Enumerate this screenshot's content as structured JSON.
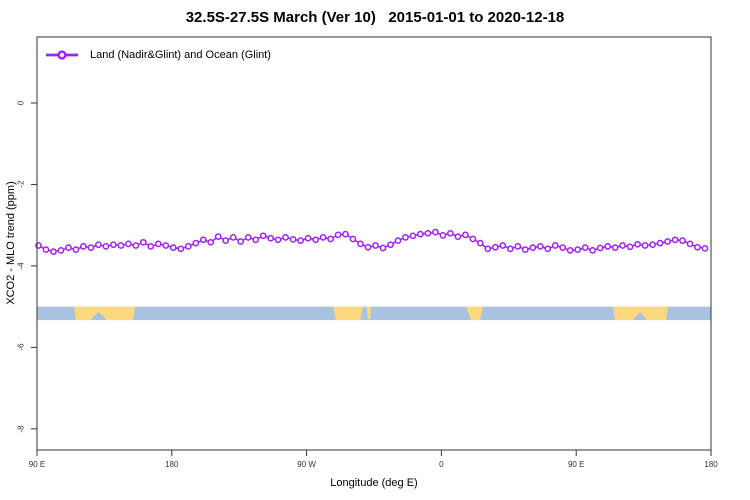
{
  "title": "32.5S-27.5S March (Ver 10)   2015-01-01 to 2020-12-18",
  "legend": {
    "label": "Land (Nadir&Glint) and Ocean (Glint)"
  },
  "colors": {
    "series": "#a020f0",
    "marker_fill": "#ffffff",
    "ocean_band": "#a8c2e0",
    "land_band": "#fcd87e",
    "axis": "#333333",
    "text": "#000000"
  },
  "chart_data": {
    "type": "line",
    "title": "32.5S-27.5S March (Ver 10)   2015-01-01 to 2020-12-18",
    "xlabel": "Longitude (deg E)",
    "ylabel": "XCO2 - MLO trend (ppm)",
    "xlim": [
      90,
      540
    ],
    "ylim": [
      -8.52,
      1.62
    ],
    "grid": false,
    "legend_position": "top-left",
    "x_ticks": [
      {
        "value": 90,
        "label": "90 E"
      },
      {
        "value": 180,
        "label": "180"
      },
      {
        "value": 270,
        "label": "90 W"
      },
      {
        "value": 360,
        "label": "0"
      },
      {
        "value": 450,
        "label": "90 E"
      },
      {
        "value": 540,
        "label": "180"
      }
    ],
    "y_ticks": [
      {
        "value": 0,
        "label": "0"
      },
      {
        "value": -2,
        "label": "-2"
      },
      {
        "value": -4,
        "label": "-4"
      },
      {
        "value": -6,
        "label": "-6"
      },
      {
        "value": -8,
        "label": "-8"
      }
    ],
    "series": [
      {
        "name": "Land (Nadir&Glint) and Ocean (Glint)",
        "color": "#a020f0",
        "marker": "open-circle",
        "x": [
          91,
          96,
          101,
          106,
          111,
          116,
          121,
          126,
          131,
          136,
          141,
          146,
          151,
          156,
          161,
          166,
          171,
          176,
          181,
          186,
          191,
          196,
          201,
          206,
          211,
          216,
          221,
          226,
          231,
          236,
          241,
          246,
          251,
          256,
          261,
          266,
          271,
          276,
          281,
          286,
          291,
          296,
          301,
          306,
          311,
          316,
          321,
          326,
          331,
          336,
          341,
          346,
          351,
          356,
          361,
          366,
          371,
          376,
          381,
          386,
          391,
          396,
          401,
          406,
          411,
          416,
          421,
          426,
          431,
          436,
          441,
          446,
          451,
          456,
          461,
          466,
          471,
          476,
          481,
          486,
          491,
          496,
          501,
          506,
          511,
          516,
          521,
          526,
          531,
          536
        ],
        "y": [
          -3.5,
          -3.6,
          -3.65,
          -3.62,
          -3.55,
          -3.6,
          -3.52,
          -3.55,
          -3.48,
          -3.52,
          -3.48,
          -3.5,
          -3.46,
          -3.5,
          -3.42,
          -3.52,
          -3.46,
          -3.5,
          -3.55,
          -3.58,
          -3.52,
          -3.44,
          -3.36,
          -3.42,
          -3.28,
          -3.38,
          -3.3,
          -3.4,
          -3.3,
          -3.36,
          -3.26,
          -3.32,
          -3.36,
          -3.3,
          -3.35,
          -3.38,
          -3.32,
          -3.36,
          -3.3,
          -3.34,
          -3.24,
          -3.22,
          -3.34,
          -3.46,
          -3.54,
          -3.5,
          -3.56,
          -3.48,
          -3.38,
          -3.3,
          -3.26,
          -3.22,
          -3.2,
          -3.17,
          -3.25,
          -3.2,
          -3.28,
          -3.24,
          -3.34,
          -3.44,
          -3.58,
          -3.54,
          -3.5,
          -3.58,
          -3.52,
          -3.6,
          -3.55,
          -3.52,
          -3.58,
          -3.5,
          -3.55,
          -3.62,
          -3.6,
          -3.55,
          -3.62,
          -3.56,
          -3.52,
          -3.55,
          -3.5,
          -3.53,
          -3.47,
          -3.5,
          -3.48,
          -3.44,
          -3.4,
          -3.36,
          -3.38,
          -3.46,
          -3.54,
          -3.57
        ]
      }
    ],
    "coverage_band": {
      "description": "ocean (blue) vs land (yellow) strip",
      "value_top": -5.0,
      "value_bottom": -5.33,
      "ocean_color": "#a8c2e0",
      "land_color": "#fcd87e",
      "land_patches": [
        [
          [
            114.7,
            0
          ],
          [
            155.4,
            0
          ],
          [
            154.1,
            1
          ],
          [
            136.7,
            1
          ],
          [
            131.1,
            0.4
          ],
          [
            125.4,
            1
          ],
          [
            116.0,
            1
          ]
        ],
        [
          [
            287.6,
            0
          ],
          [
            307.7,
            0
          ],
          [
            305.7,
            1
          ],
          [
            289.6,
            1
          ]
        ],
        [
          [
            310.3,
            0
          ],
          [
            313.0,
            0
          ],
          [
            312.5,
            0.9
          ],
          [
            310.8,
            0.9
          ]
        ],
        [
          [
            376.4,
            0
          ],
          [
            387.8,
            0
          ],
          [
            385.8,
            1
          ],
          [
            379.8,
            1
          ]
        ],
        [
          [
            474.6,
            0
          ],
          [
            511.3,
            0
          ],
          [
            510.0,
            1
          ],
          [
            497.3,
            1
          ],
          [
            492.6,
            0.4
          ],
          [
            487.9,
            1
          ],
          [
            475.9,
            1
          ]
        ]
      ]
    }
  }
}
